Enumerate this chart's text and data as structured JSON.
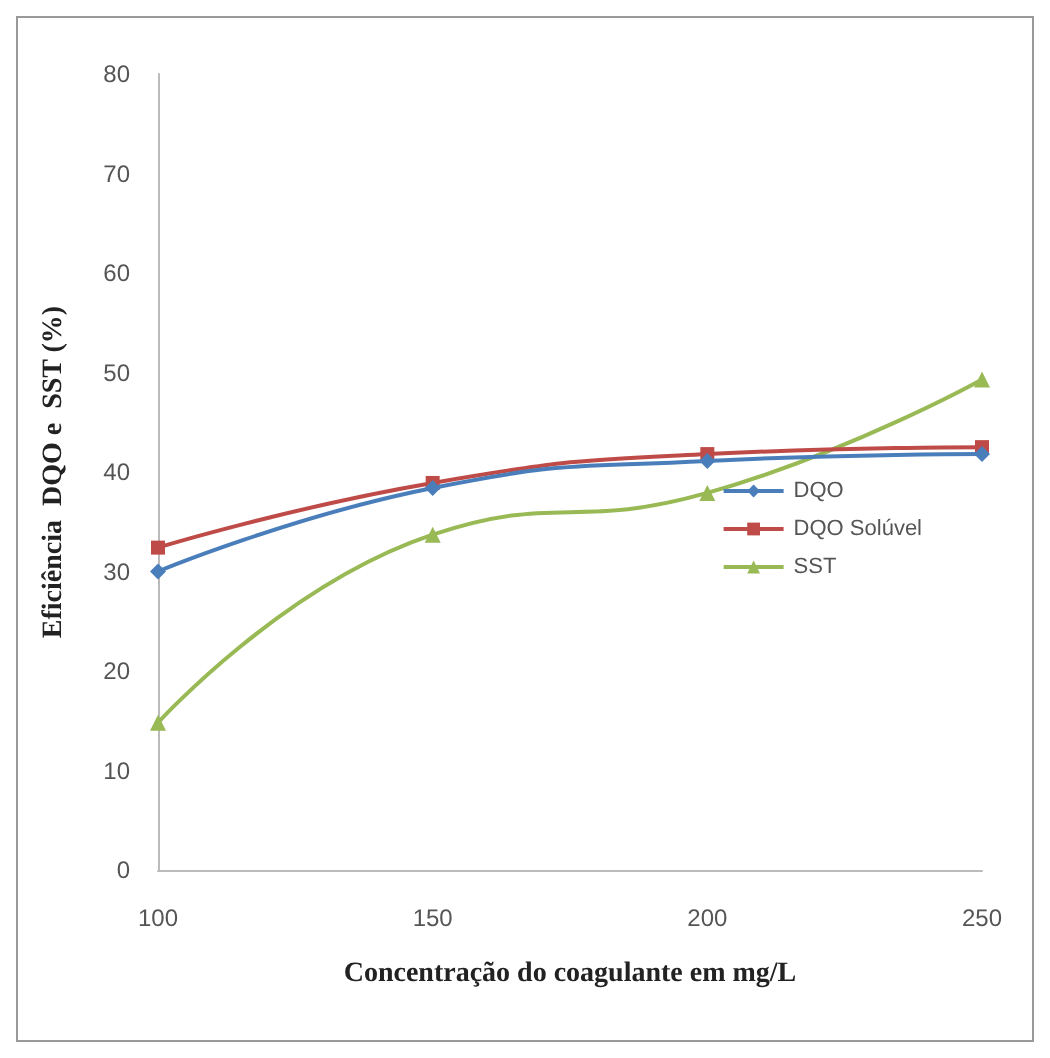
{
  "chart_data": {
    "type": "line",
    "xlabel": "Concentração do coagulante em mg/L",
    "ylabel": "Eficiência  DQO e  SST (%)",
    "categories": [
      "100",
      "150",
      "200",
      "250"
    ],
    "ylim": [
      0,
      80
    ],
    "yticks": [
      0,
      10,
      20,
      30,
      40,
      50,
      60,
      70,
      80
    ],
    "grid": false,
    "legend": "right",
    "series": [
      {
        "name": "DQO",
        "color": "#4a7ebb",
        "marker": "diamond",
        "values": [
          30,
          38.4,
          41.1,
          41.8
        ]
      },
      {
        "name": "DQO Solúvel",
        "color": "#be4b48",
        "marker": "square",
        "values": [
          32.4,
          38.9,
          41.8,
          42.5
        ]
      },
      {
        "name": "SST",
        "color": "#98b954",
        "marker": "triangle",
        "values": [
          14.8,
          33.7,
          37.9,
          49.3
        ]
      }
    ]
  }
}
